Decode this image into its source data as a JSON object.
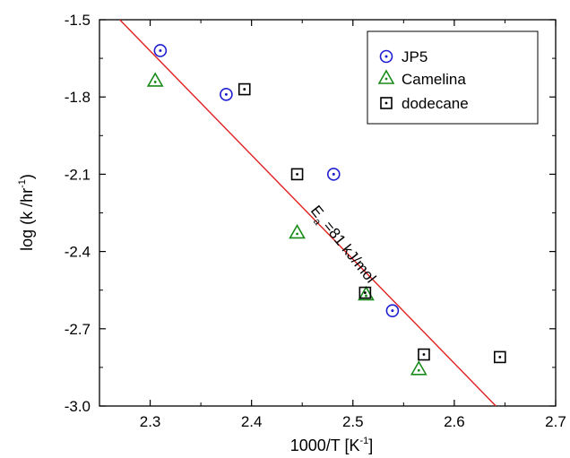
{
  "chart_data": {
    "type": "scatter",
    "xlabel": "1000/T  [K",
    "xlabel_sup": "-1",
    "xlabel_end": "]",
    "ylabel": "log (k /hr",
    "ylabel_sup": "-1",
    "ylabel_end": ")",
    "xlim": [
      2.25,
      2.7
    ],
    "ylim": [
      -3.0,
      -1.5
    ],
    "x_ticks": [
      2.3,
      2.4,
      2.5,
      2.6,
      2.7
    ],
    "x_tick_labels": [
      "2.3",
      "2.4",
      "2.5",
      "2.6",
      "2.7"
    ],
    "y_ticks": [
      -3.0,
      -2.7,
      -2.4,
      -2.1,
      -1.8,
      -1.5
    ],
    "y_tick_labels": [
      "-3.0",
      "-2.7",
      "-2.4",
      "-2.1",
      "-1.8",
      "-1.5"
    ],
    "grid": false,
    "legend_position": "top-right",
    "series": [
      {
        "name": "JP5",
        "marker": "circle-dot",
        "color": "#1f1fd0",
        "points": [
          {
            "x": 2.31,
            "y": -1.62
          },
          {
            "x": 2.375,
            "y": -1.79
          },
          {
            "x": 2.481,
            "y": -2.1
          },
          {
            "x": 2.539,
            "y": -2.63
          }
        ]
      },
      {
        "name": "Camelina",
        "marker": "triangle-dot",
        "color": "#1a8a1a",
        "points": [
          {
            "x": 2.305,
            "y": -1.74
          },
          {
            "x": 2.445,
            "y": -2.33
          },
          {
            "x": 2.513,
            "y": -2.57
          },
          {
            "x": 2.565,
            "y": -2.86
          }
        ]
      },
      {
        "name": "dodecane",
        "marker": "square-dot",
        "color": "#000000",
        "points": [
          {
            "x": 2.393,
            "y": -1.77
          },
          {
            "x": 2.445,
            "y": -2.1
          },
          {
            "x": 2.512,
            "y": -2.56
          },
          {
            "x": 2.57,
            "y": -2.8
          },
          {
            "x": 2.645,
            "y": -2.81
          }
        ]
      }
    ],
    "fit_line": {
      "color": "#e02020",
      "x": [
        2.27,
        2.641
      ],
      "y": [
        -1.5,
        -3.0
      ]
    },
    "annotation": {
      "prefix": "E",
      "subscript": "a",
      "suffix": " =81 kJ/mol"
    }
  }
}
